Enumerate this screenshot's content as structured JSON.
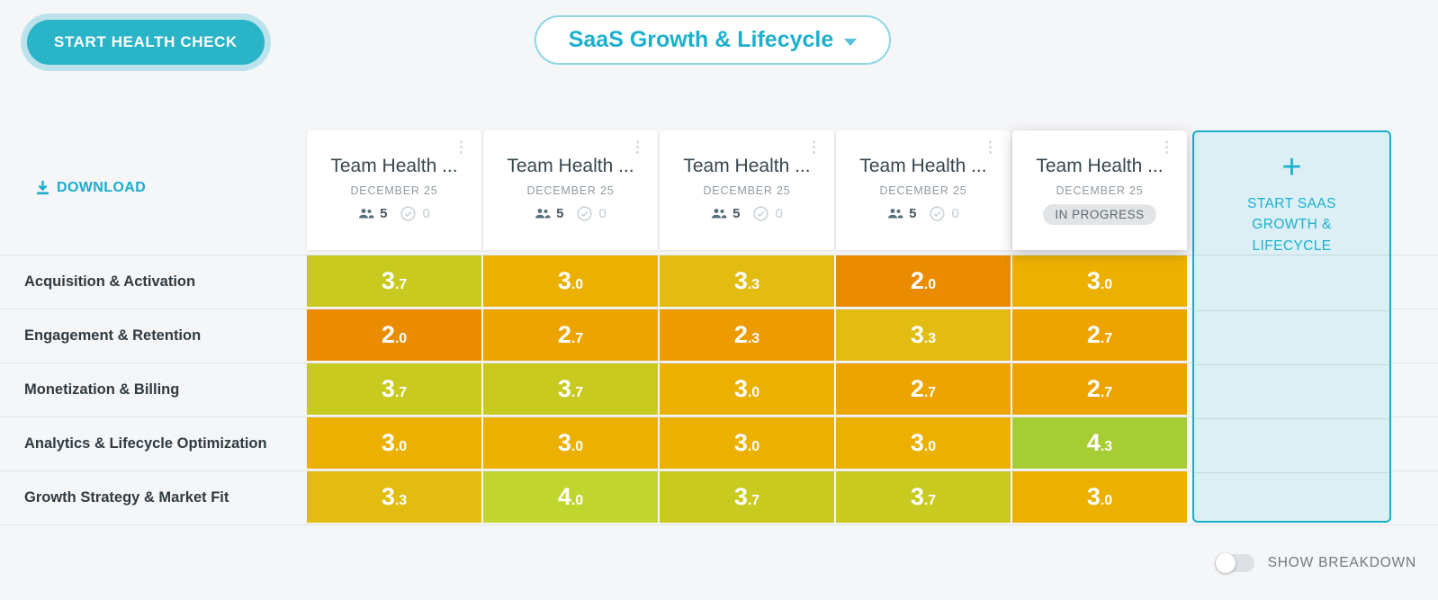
{
  "header": {
    "start_button_label": "START HEALTH CHECK",
    "template_selector_label": "SaaS Growth & Lifecycle"
  },
  "toolbar": {
    "download_label": "DOWNLOAD"
  },
  "columns": [
    {
      "title": "Team Health ...",
      "date": "DECEMBER 25",
      "participants": "5",
      "completed": "0",
      "status": null
    },
    {
      "title": "Team Health ...",
      "date": "DECEMBER 25",
      "participants": "5",
      "completed": "0",
      "status": null
    },
    {
      "title": "Team Health ...",
      "date": "DECEMBER 25",
      "participants": "5",
      "completed": "0",
      "status": null
    },
    {
      "title": "Team Health ...",
      "date": "DECEMBER 25",
      "participants": "5",
      "completed": "0",
      "status": null
    },
    {
      "title": "Team Health ...",
      "date": "DECEMBER 25",
      "participants": null,
      "completed": null,
      "status": "IN PROGRESS"
    }
  ],
  "start_column": {
    "plus": "+",
    "label": "START SAAS GROWTH & LIFECYCLE"
  },
  "matrix": {
    "rows": [
      {
        "label": "Acquisition & Activation",
        "scores": [
          "3.7",
          "3.0",
          "3.3",
          "2.0",
          "3.0"
        ]
      },
      {
        "label": "Engagement & Retention",
        "scores": [
          "2.0",
          "2.7",
          "2.3",
          "3.3",
          "2.7"
        ]
      },
      {
        "label": "Monetization & Billing",
        "scores": [
          "3.7",
          "3.7",
          "3.0",
          "2.7",
          "2.7"
        ]
      },
      {
        "label": "Analytics & Lifecycle Optimization",
        "scores": [
          "3.0",
          "3.0",
          "3.0",
          "3.0",
          "4.3"
        ]
      },
      {
        "label": "Growth Strategy & Market Fit",
        "scores": [
          "3.3",
          "4.0",
          "3.7",
          "3.7",
          "3.0"
        ]
      }
    ],
    "score_colors": {
      "2.0": "#ea8b00",
      "2.3": "#ec9b00",
      "2.7": "#eda400",
      "3.0": "#ebb000",
      "3.3": "#e2bc10",
      "3.7": "#c8ca20",
      "4.0": "#c0d52e",
      "4.3": "#a7cd35"
    }
  },
  "footer": {
    "toggle_label": "SHOW BREAKDOWN",
    "toggle_state": "off"
  },
  "theme": {
    "accent_teal": "#1db0cd",
    "button_teal": "#29b4c8",
    "start_box_fill": "#dbeff5",
    "page_bg": "#f5f6f8"
  }
}
